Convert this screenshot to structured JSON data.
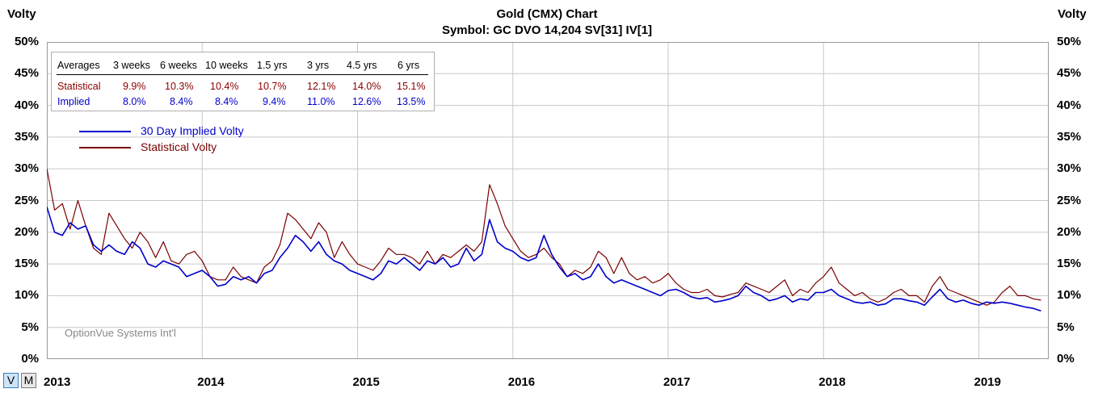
{
  "header": {
    "title": "Gold (CMX) Chart",
    "subtitle": "Symbol: GC  DVO 14,204  SV[31]  IV[1]",
    "left_axis_title": "Volty",
    "right_axis_title": "Volty"
  },
  "averages_table": {
    "header": [
      "Averages",
      "3 weeks",
      "6 weeks",
      "10 weeks",
      "1.5 yrs",
      "3 yrs",
      "4.5 yrs",
      "6 yrs"
    ],
    "rows": [
      {
        "label": "Statistical",
        "values": [
          "9.9%",
          "10.3%",
          "10.4%",
          "10.7%",
          "12.1%",
          "14.0%",
          "15.1%"
        ]
      },
      {
        "label": "Implied",
        "values": [
          "8.0%",
          "8.4%",
          "8.4%",
          "9.4%",
          "11.0%",
          "12.6%",
          "13.5%"
        ]
      }
    ]
  },
  "legend": {
    "implied": "30 Day Implied Volty",
    "statistical": "Statistical Volty"
  },
  "watermark": "OptionVue Systems Int'l",
  "view_toggles": {
    "v": "V",
    "m": "M"
  },
  "colors": {
    "implied": "#0000cc",
    "statistical": "#7a0000",
    "grid": "#c8c8c8",
    "table_statistical": "#8b0000",
    "table_implied": "#0000cc"
  },
  "chart_data": {
    "type": "line",
    "title": "Gold (CMX) Chart",
    "subtitle": "Symbol: GC  DVO 14,204  SV[31]  IV[1]",
    "ylabel": "Volty",
    "ylim": [
      0,
      50
    ],
    "xlim": [
      2013.0,
      2019.45
    ],
    "y_ticks": [
      "0%",
      "5%",
      "10%",
      "15%",
      "20%",
      "25%",
      "30%",
      "35%",
      "40%",
      "45%",
      "50%"
    ],
    "y_tick_values": [
      0,
      5,
      10,
      15,
      20,
      25,
      30,
      35,
      40,
      45,
      50
    ],
    "x_ticks": [
      "2013",
      "2014",
      "2015",
      "2016",
      "2017",
      "2018",
      "2019"
    ],
    "x_tick_values": [
      2013,
      2014,
      2015,
      2016,
      2017,
      2018,
      2019
    ],
    "grid": true,
    "legend_position": "top-left",
    "series": [
      {
        "name": "30 Day Implied Volty",
        "x": [
          2013.0,
          2013.05,
          2013.1,
          2013.15,
          2013.2,
          2013.25,
          2013.3,
          2013.35,
          2013.4,
          2013.45,
          2013.5,
          2013.55,
          2013.6,
          2013.65,
          2013.7,
          2013.75,
          2013.8,
          2013.85,
          2013.9,
          2013.95,
          2014.0,
          2014.05,
          2014.1,
          2014.15,
          2014.2,
          2014.25,
          2014.3,
          2014.35,
          2014.4,
          2014.45,
          2014.5,
          2014.55,
          2014.6,
          2014.65,
          2014.7,
          2014.75,
          2014.8,
          2014.85,
          2014.9,
          2014.95,
          2015.0,
          2015.05,
          2015.1,
          2015.15,
          2015.2,
          2015.25,
          2015.3,
          2015.35,
          2015.4,
          2015.45,
          2015.5,
          2015.55,
          2015.6,
          2015.65,
          2015.7,
          2015.75,
          2015.8,
          2015.85,
          2015.9,
          2015.95,
          2016.0,
          2016.05,
          2016.1,
          2016.15,
          2016.2,
          2016.25,
          2016.3,
          2016.35,
          2016.4,
          2016.45,
          2016.5,
          2016.55,
          2016.6,
          2016.65,
          2016.7,
          2016.75,
          2016.8,
          2016.85,
          2016.9,
          2016.95,
          2017.0,
          2017.05,
          2017.1,
          2017.15,
          2017.2,
          2017.25,
          2017.3,
          2017.35,
          2017.4,
          2017.45,
          2017.5,
          2017.55,
          2017.6,
          2017.65,
          2017.7,
          2017.75,
          2017.8,
          2017.85,
          2017.9,
          2017.95,
          2018.0,
          2018.05,
          2018.1,
          2018.15,
          2018.2,
          2018.25,
          2018.3,
          2018.35,
          2018.4,
          2018.45,
          2018.5,
          2018.55,
          2018.6,
          2018.65,
          2018.7,
          2018.75,
          2018.8,
          2018.85,
          2018.9,
          2018.95,
          2019.0,
          2019.05,
          2019.1,
          2019.15,
          2019.2,
          2019.25,
          2019.3,
          2019.35,
          2019.4
        ],
        "y": [
          24.0,
          20.0,
          19.5,
          21.5,
          20.5,
          21.0,
          18.0,
          17.0,
          18.0,
          17.0,
          16.5,
          18.5,
          17.5,
          15.0,
          14.5,
          15.5,
          15.0,
          14.5,
          13.0,
          13.5,
          14.0,
          13.0,
          11.5,
          11.8,
          13.0,
          12.5,
          13.0,
          12.0,
          13.5,
          14.0,
          16.0,
          17.5,
          19.5,
          18.5,
          17.0,
          18.5,
          16.5,
          15.5,
          15.0,
          14.0,
          13.5,
          13.0,
          12.5,
          13.5,
          15.5,
          15.0,
          16.0,
          15.0,
          14.0,
          15.5,
          15.0,
          16.0,
          14.5,
          15.0,
          17.5,
          15.5,
          16.5,
          22.0,
          18.5,
          17.5,
          17.0,
          16.0,
          15.5,
          16.0,
          19.5,
          16.5,
          14.5,
          13.0,
          13.5,
          12.5,
          13.0,
          15.0,
          13.0,
          12.0,
          12.5,
          12.0,
          11.5,
          11.0,
          10.5,
          10.0,
          10.8,
          11.0,
          10.5,
          9.8,
          9.5,
          9.7,
          9.0,
          9.2,
          9.5,
          10.0,
          11.5,
          10.5,
          10.0,
          9.2,
          9.5,
          10.0,
          9.0,
          9.5,
          9.3,
          10.5,
          10.5,
          11.0,
          10.0,
          9.5,
          9.0,
          8.8,
          9.0,
          8.5,
          8.7,
          9.5,
          9.5,
          9.2,
          9.0,
          8.5,
          9.8,
          11.0,
          9.5,
          9.0,
          9.3,
          8.8,
          8.5,
          9.0,
          8.8,
          9.0,
          8.8,
          8.5,
          8.2,
          8.0,
          7.6
        ]
      },
      {
        "name": "Statistical Volty",
        "x": [
          2013.0,
          2013.05,
          2013.1,
          2013.15,
          2013.2,
          2013.25,
          2013.3,
          2013.35,
          2013.4,
          2013.45,
          2013.5,
          2013.55,
          2013.6,
          2013.65,
          2013.7,
          2013.75,
          2013.8,
          2013.85,
          2013.9,
          2013.95,
          2014.0,
          2014.05,
          2014.1,
          2014.15,
          2014.2,
          2014.25,
          2014.3,
          2014.35,
          2014.4,
          2014.45,
          2014.5,
          2014.55,
          2014.6,
          2014.65,
          2014.7,
          2014.75,
          2014.8,
          2014.85,
          2014.9,
          2014.95,
          2015.0,
          2015.05,
          2015.1,
          2015.15,
          2015.2,
          2015.25,
          2015.3,
          2015.35,
          2015.4,
          2015.45,
          2015.5,
          2015.55,
          2015.6,
          2015.65,
          2015.7,
          2015.75,
          2015.8,
          2015.85,
          2015.9,
          2015.95,
          2016.0,
          2016.05,
          2016.1,
          2016.15,
          2016.2,
          2016.25,
          2016.3,
          2016.35,
          2016.4,
          2016.45,
          2016.5,
          2016.55,
          2016.6,
          2016.65,
          2016.7,
          2016.75,
          2016.8,
          2016.85,
          2016.9,
          2016.95,
          2017.0,
          2017.05,
          2017.1,
          2017.15,
          2017.2,
          2017.25,
          2017.3,
          2017.35,
          2017.4,
          2017.45,
          2017.5,
          2017.55,
          2017.6,
          2017.65,
          2017.7,
          2017.75,
          2017.8,
          2017.85,
          2017.9,
          2017.95,
          2018.0,
          2018.05,
          2018.1,
          2018.15,
          2018.2,
          2018.25,
          2018.3,
          2018.35,
          2018.4,
          2018.45,
          2018.5,
          2018.55,
          2018.6,
          2018.65,
          2018.7,
          2018.75,
          2018.8,
          2018.85,
          2018.9,
          2018.95,
          2019.0,
          2019.05,
          2019.1,
          2019.15,
          2019.2,
          2019.25,
          2019.3,
          2019.35,
          2019.4
        ],
        "y": [
          30.0,
          23.5,
          24.5,
          20.5,
          25.0,
          21.0,
          17.5,
          16.5,
          23.0,
          21.0,
          19.0,
          17.5,
          20.0,
          18.5,
          16.0,
          18.5,
          15.5,
          15.0,
          16.5,
          17.0,
          15.5,
          13.0,
          12.5,
          12.5,
          14.5,
          13.0,
          12.5,
          12.0,
          14.5,
          15.5,
          18.0,
          23.0,
          22.0,
          20.5,
          19.0,
          21.5,
          20.0,
          16.0,
          18.5,
          16.5,
          15.0,
          14.5,
          14.0,
          15.5,
          17.5,
          16.5,
          16.5,
          16.0,
          15.0,
          17.0,
          15.0,
          16.5,
          16.0,
          17.0,
          18.0,
          17.0,
          18.5,
          27.5,
          24.5,
          21.0,
          19.0,
          17.0,
          16.0,
          16.5,
          17.5,
          16.0,
          15.0,
          13.0,
          14.0,
          13.5,
          14.5,
          17.0,
          16.0,
          13.5,
          16.0,
          13.5,
          12.5,
          13.0,
          12.0,
          12.5,
          13.5,
          12.0,
          11.0,
          10.5,
          10.5,
          11.0,
          10.0,
          9.8,
          10.2,
          10.5,
          12.0,
          11.5,
          11.0,
          10.5,
          11.5,
          12.5,
          10.0,
          11.0,
          10.5,
          12.0,
          13.0,
          14.5,
          12.0,
          11.0,
          10.0,
          10.5,
          9.5,
          9.0,
          9.5,
          10.5,
          11.0,
          10.0,
          10.0,
          9.0,
          11.5,
          13.0,
          11.0,
          10.5,
          10.0,
          9.5,
          9.0,
          8.5,
          9.0,
          10.5,
          11.5,
          10.0,
          10.0,
          9.5,
          9.3
        ]
      }
    ]
  }
}
